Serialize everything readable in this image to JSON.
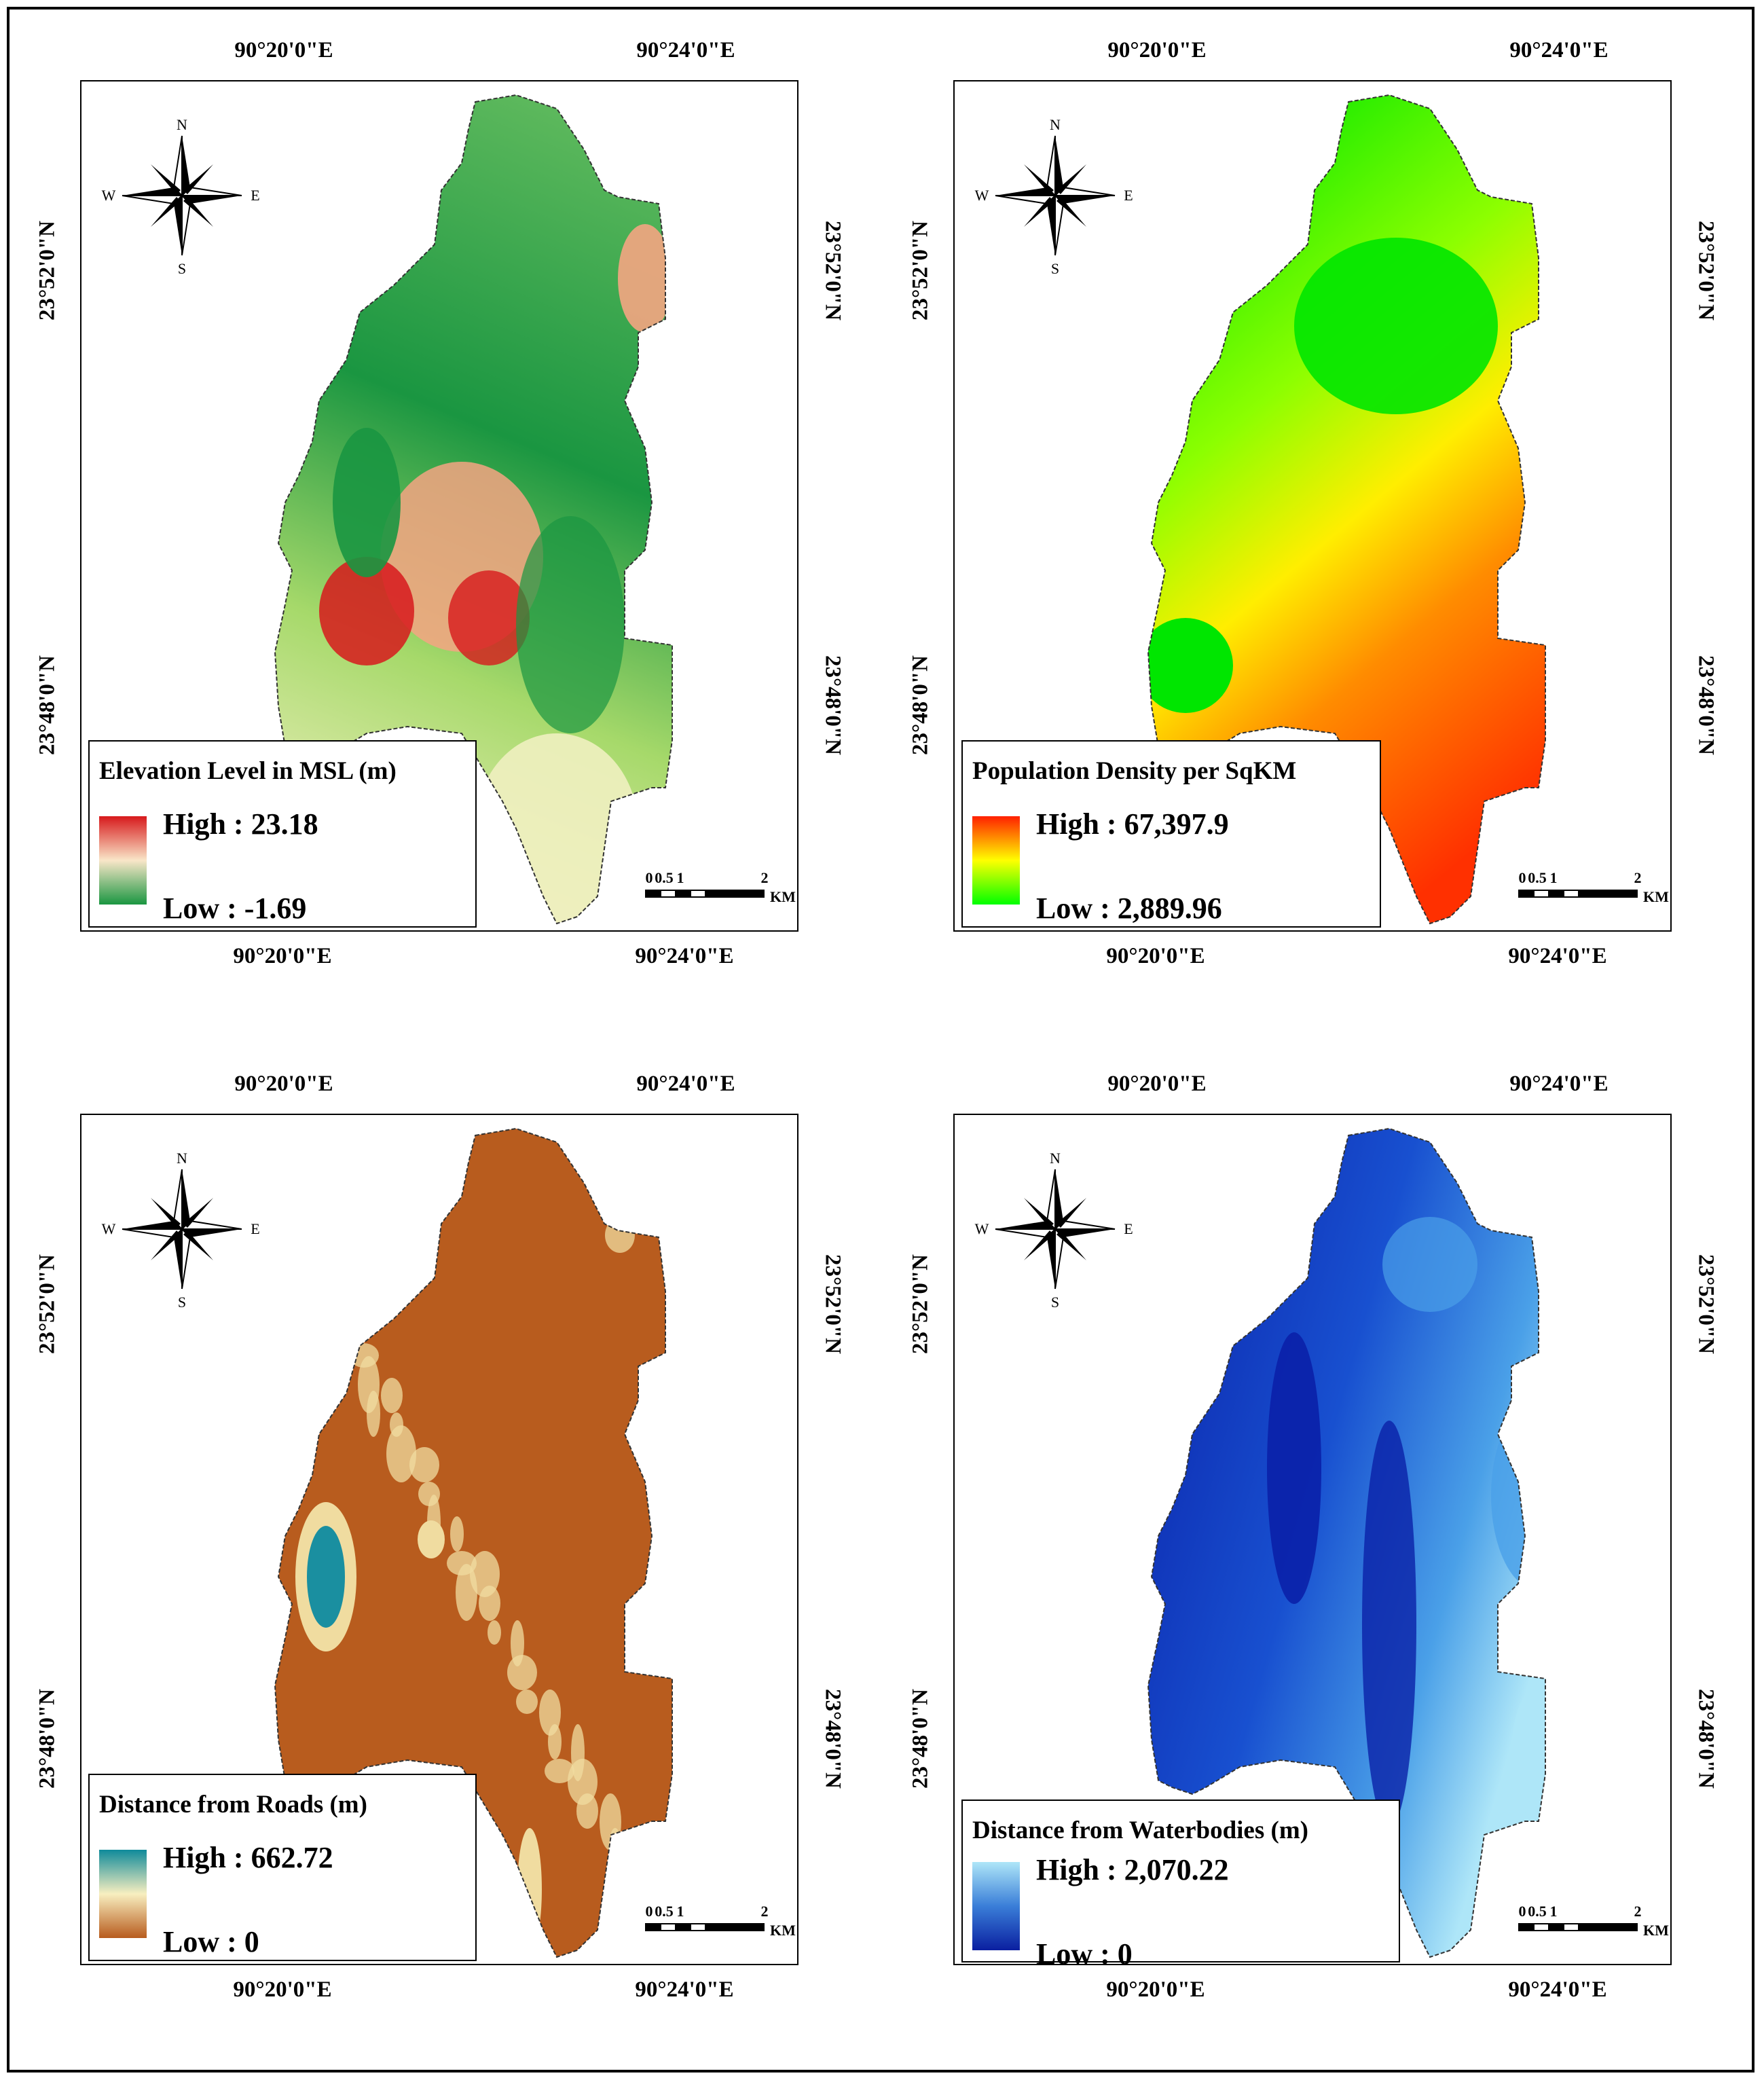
{
  "panels": [
    {
      "id": "elevation",
      "legend": {
        "title": "Elevation Level in MSL (m)",
        "high_label": "High : 23.18",
        "low_label": "Low : -1.69",
        "ramp_colors": [
          "#d7191c",
          "#f9e6c8",
          "#1a9641"
        ]
      },
      "fill_colors": [
        "#1a9641",
        "#5cb85c",
        "#a6d96a",
        "#f0f0c0",
        "#f4a582",
        "#d7191c"
      ]
    },
    {
      "id": "population",
      "legend": {
        "title": "Population Density per SqKM",
        "high_label": "High : 67,397.9",
        "low_label": "Low : 2,889.96",
        "ramp_colors": [
          "#ff2000",
          "#ffff00",
          "#00ff00"
        ]
      },
      "fill_colors": [
        "#00e600",
        "#8cff00",
        "#ffee00",
        "#ff8c00",
        "#ff3000"
      ]
    },
    {
      "id": "roads",
      "legend": {
        "title": "Distance from Roads (m)",
        "high_label": "High : 662.72",
        "low_label": "Low : 0",
        "ramp_colors": [
          "#0f8a9a",
          "#f8efc0",
          "#b85c1e"
        ]
      },
      "fill_colors": [
        "#b85c1e",
        "#f0dca0",
        "#1a8fa0"
      ]
    },
    {
      "id": "waterbodies",
      "legend": {
        "title": "Distance from Waterbodies (m)",
        "high_label": "High : 2,070.22",
        "low_label": "Low : 0",
        "ramp_colors": [
          "#aee6f8",
          "#3a7ed8",
          "#0a1fa0"
        ]
      },
      "fill_colors": [
        "#0a20a8",
        "#1850d0",
        "#4aa0e8",
        "#aee6f8"
      ]
    }
  ],
  "axes": {
    "lon_labels": [
      "90°20'0\"E",
      "90°24'0\"E"
    ],
    "lat_labels": [
      "23°52'0\"N",
      "23°48'0\"N"
    ]
  },
  "scale_bar": {
    "ticks": [
      "0",
      "0.5",
      "1",
      "2"
    ],
    "unit": "KM"
  },
  "compass": {
    "n": "N",
    "s": "S",
    "e": "E",
    "w": "W"
  }
}
